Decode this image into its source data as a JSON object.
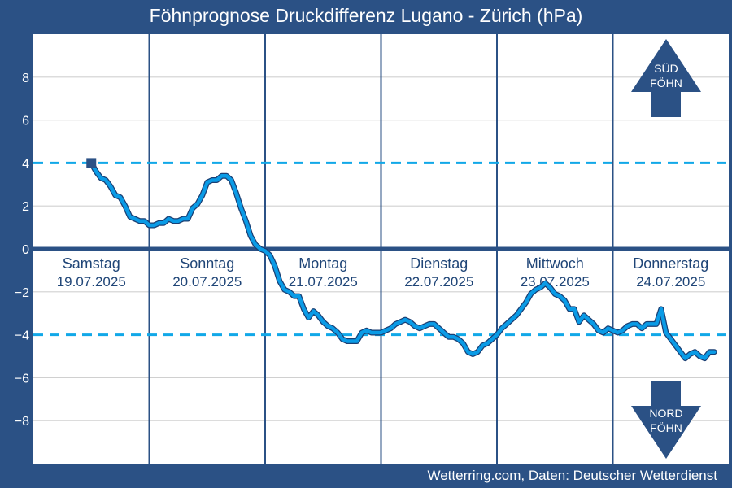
{
  "title": "Föhnprognose Druckdifferenz Lugano - Zürich (hPa)",
  "credit": "Wetterring.com, Daten: Deutscher Wetterdienst",
  "colors": {
    "frame": "#2b5185",
    "plot_bg": "#ffffff",
    "grid": "#d0d0d0",
    "line": "#0a9be6",
    "line_outline": "#1b3f73",
    "threshold": "#11a8e8",
    "zero_line": "#2b5185",
    "day_text": "#1f4577",
    "arrow": "#2b5185"
  },
  "arrows": {
    "up": {
      "line1": "SÜD",
      "line2": "FÖHN",
      "icon": "arrow-up-icon"
    },
    "down": {
      "line1": "NORD",
      "line2": "FÖHN",
      "icon": "arrow-down-icon"
    }
  },
  "chart_data": {
    "type": "line",
    "title": "Föhnprognose Druckdifferenz Lugano - Zürich (hPa)",
    "xlabel": "",
    "ylabel": "",
    "ylim": [
      -10,
      10
    ],
    "yticks": [
      -8,
      -6,
      -4,
      -2,
      0,
      2,
      4,
      6,
      8
    ],
    "ytick_labels": [
      "−8",
      "−6",
      "−4",
      "−2",
      "0",
      "2",
      "4",
      "6",
      "8"
    ],
    "thresholds": [
      4,
      -4
    ],
    "grid": true,
    "days": [
      {
        "name": "Samstag",
        "date": "19.07.2025"
      },
      {
        "name": "Sonntag",
        "date": "20.07.2025"
      },
      {
        "name": "Montag",
        "date": "21.07.2025"
      },
      {
        "name": "Dienstag",
        "date": "22.07.2025"
      },
      {
        "name": "Mittwoch",
        "date": "23.07.2025"
      },
      {
        "name": "Donnerstag",
        "date": "24.07.2025"
      }
    ],
    "x_hours_start": 12,
    "marker_first_point": true,
    "series": [
      {
        "values": [
          [
            12,
            4.0
          ],
          [
            13,
            3.6
          ],
          [
            14,
            3.3
          ],
          [
            15,
            3.2
          ],
          [
            16,
            2.9
          ],
          [
            17,
            2.5
          ],
          [
            18,
            2.4
          ],
          [
            19,
            2.0
          ],
          [
            20,
            1.5
          ],
          [
            21,
            1.4
          ],
          [
            22,
            1.3
          ],
          [
            23,
            1.3
          ],
          [
            24,
            1.1
          ],
          [
            25,
            1.1
          ],
          [
            26,
            1.2
          ],
          [
            27,
            1.2
          ],
          [
            28,
            1.4
          ],
          [
            29,
            1.3
          ],
          [
            30,
            1.3
          ],
          [
            31,
            1.4
          ],
          [
            32,
            1.4
          ],
          [
            33,
            1.9
          ],
          [
            34,
            2.1
          ],
          [
            35,
            2.5
          ],
          [
            36,
            3.1
          ],
          [
            37,
            3.2
          ],
          [
            38,
            3.2
          ],
          [
            39,
            3.4
          ],
          [
            40,
            3.4
          ],
          [
            41,
            3.2
          ],
          [
            42,
            2.6
          ],
          [
            43,
            1.9
          ],
          [
            44,
            1.3
          ],
          [
            45,
            0.6
          ],
          [
            46,
            0.2
          ],
          [
            47,
            0.0
          ],
          [
            48,
            -0.1
          ],
          [
            49,
            -0.3
          ],
          [
            50,
            -0.8
          ],
          [
            51,
            -1.5
          ],
          [
            52,
            -1.9
          ],
          [
            53,
            -2.0
          ],
          [
            54,
            -2.2
          ],
          [
            55,
            -2.2
          ],
          [
            56,
            -2.8
          ],
          [
            57,
            -3.2
          ],
          [
            58,
            -2.9
          ],
          [
            59,
            -3.1
          ],
          [
            60,
            -3.4
          ],
          [
            61,
            -3.6
          ],
          [
            62,
            -3.7
          ],
          [
            63,
            -3.9
          ],
          [
            64,
            -4.2
          ],
          [
            65,
            -4.3
          ],
          [
            66,
            -4.3
          ],
          [
            67,
            -4.3
          ],
          [
            68,
            -3.9
          ],
          [
            69,
            -3.8
          ],
          [
            70,
            -3.9
          ],
          [
            71,
            -3.9
          ],
          [
            72,
            -3.9
          ],
          [
            73,
            -3.8
          ],
          [
            74,
            -3.7
          ],
          [
            75,
            -3.5
          ],
          [
            76,
            -3.4
          ],
          [
            77,
            -3.3
          ],
          [
            78,
            -3.4
          ],
          [
            79,
            -3.6
          ],
          [
            80,
            -3.7
          ],
          [
            81,
            -3.6
          ],
          [
            82,
            -3.5
          ],
          [
            83,
            -3.5
          ],
          [
            84,
            -3.7
          ],
          [
            85,
            -3.9
          ],
          [
            86,
            -4.1
          ],
          [
            87,
            -4.1
          ],
          [
            88,
            -4.2
          ],
          [
            89,
            -4.4
          ],
          [
            90,
            -4.8
          ],
          [
            91,
            -4.9
          ],
          [
            92,
            -4.8
          ],
          [
            93,
            -4.5
          ],
          [
            94,
            -4.4
          ],
          [
            95,
            -4.2
          ],
          [
            96,
            -4.0
          ],
          [
            97,
            -3.7
          ],
          [
            98,
            -3.5
          ],
          [
            99,
            -3.3
          ],
          [
            100,
            -3.1
          ],
          [
            101,
            -2.8
          ],
          [
            102,
            -2.5
          ],
          [
            103,
            -2.1
          ],
          [
            104,
            -1.9
          ],
          [
            105,
            -1.8
          ],
          [
            106,
            -1.6
          ],
          [
            107,
            -1.8
          ],
          [
            108,
            -2.1
          ],
          [
            109,
            -2.2
          ],
          [
            110,
            -2.4
          ],
          [
            111,
            -2.8
          ],
          [
            112,
            -2.8
          ],
          [
            113,
            -3.4
          ],
          [
            114,
            -3.1
          ],
          [
            115,
            -3.3
          ],
          [
            116,
            -3.5
          ],
          [
            117,
            -3.8
          ],
          [
            118,
            -3.9
          ],
          [
            119,
            -3.7
          ],
          [
            120,
            -3.8
          ],
          [
            121,
            -3.9
          ],
          [
            122,
            -3.8
          ],
          [
            123,
            -3.6
          ],
          [
            124,
            -3.5
          ],
          [
            125,
            -3.5
          ],
          [
            126,
            -3.7
          ],
          [
            127,
            -3.5
          ],
          [
            128,
            -3.5
          ],
          [
            129,
            -3.5
          ],
          [
            130,
            -2.8
          ],
          [
            131,
            -3.9
          ],
          [
            132,
            -4.2
          ],
          [
            133,
            -4.5
          ],
          [
            134,
            -4.8
          ],
          [
            135,
            -5.1
          ],
          [
            136,
            -4.9
          ],
          [
            137,
            -4.8
          ],
          [
            138,
            -5.0
          ],
          [
            139,
            -5.1
          ],
          [
            140,
            -4.8
          ],
          [
            141,
            -4.8
          ]
        ]
      }
    ]
  }
}
